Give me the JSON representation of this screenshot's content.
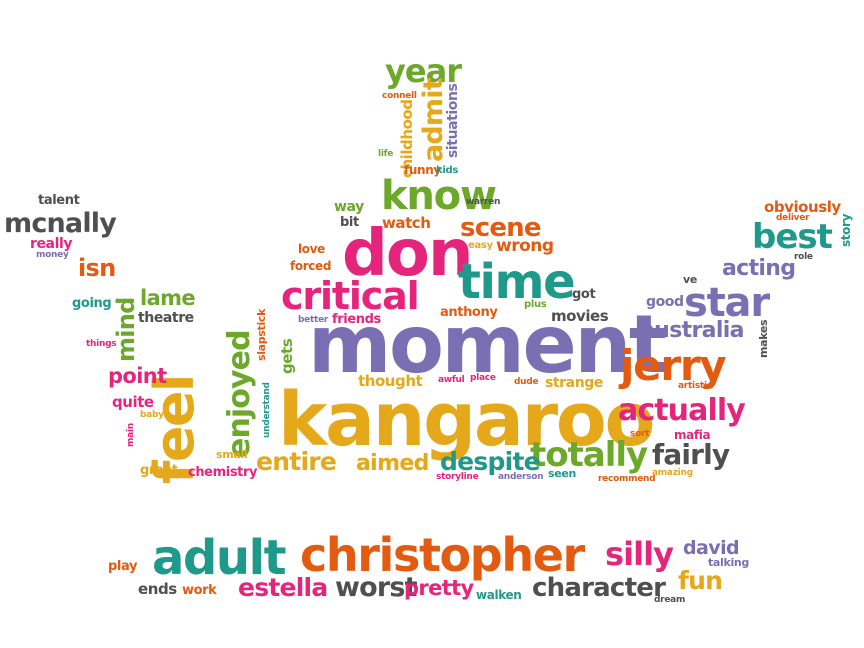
{
  "palette": {
    "pink": "#e5257c",
    "orange": "#e35b10",
    "gold": "#e5a81a",
    "green": "#6ca82a",
    "teal": "#1f9a8a",
    "purple": "#7a6fb3",
    "gray": "#4f4f4f"
  },
  "words": [
    {
      "text": "kangaroo",
      "color": "#e5a81a"
    },
    {
      "text": "moment",
      "color": "#7a6fb3"
    },
    {
      "text": "christopher",
      "color": "#e35b10"
    },
    {
      "text": "adult",
      "color": "#1f9a8a"
    },
    {
      "text": "don",
      "color": "#e5257c"
    },
    {
      "text": "feel",
      "color": "#e5a81a"
    },
    {
      "text": "time",
      "color": "#1f9a8a"
    },
    {
      "text": "critical",
      "color": "#e5257c"
    },
    {
      "text": "know",
      "color": "#6ca82a"
    },
    {
      "text": "jerry",
      "color": "#e35b10"
    },
    {
      "text": "star",
      "color": "#7a6fb3"
    },
    {
      "text": "year",
      "color": "#6ca82a"
    },
    {
      "text": "best",
      "color": "#1f9a8a"
    },
    {
      "text": "totally",
      "color": "#6ca82a"
    },
    {
      "text": "actually",
      "color": "#e5257c"
    },
    {
      "text": "enjoyed",
      "color": "#6ca82a"
    },
    {
      "text": "character",
      "color": "#4f4f4f"
    },
    {
      "text": "silly",
      "color": "#e5257c"
    },
    {
      "text": "mcnally",
      "color": "#4f4f4f"
    },
    {
      "text": "admit",
      "color": "#e5a81a"
    },
    {
      "text": "scene",
      "color": "#e35b10"
    },
    {
      "text": "despite",
      "color": "#1f9a8a"
    },
    {
      "text": "entire",
      "color": "#e5a81a"
    },
    {
      "text": "fairly",
      "color": "#4f4f4f"
    },
    {
      "text": "worst",
      "color": "#4f4f4f"
    },
    {
      "text": "estella",
      "color": "#e5257c"
    },
    {
      "text": "fun",
      "color": "#e5a81a"
    },
    {
      "text": "australia",
      "color": "#7a6fb3"
    },
    {
      "text": "acting",
      "color": "#7a6fb3"
    },
    {
      "text": "aimed",
      "color": "#e5a81a"
    },
    {
      "text": "mind",
      "color": "#6ca82a"
    },
    {
      "text": "lame",
      "color": "#6ca82a"
    },
    {
      "text": "point",
      "color": "#e5257c"
    },
    {
      "text": "pretty",
      "color": "#e5257c"
    },
    {
      "text": "david",
      "color": "#7a6fb3"
    },
    {
      "text": "wrong",
      "color": "#e35b10"
    },
    {
      "text": "isn",
      "color": "#e35b10"
    },
    {
      "text": "watch",
      "color": "#e35b10"
    },
    {
      "text": "childhood",
      "color": "#e5a81a"
    },
    {
      "text": "situations",
      "color": "#7a6fb3"
    },
    {
      "text": "obviously",
      "color": "#e35b10"
    },
    {
      "text": "movies",
      "color": "#4f4f4f"
    },
    {
      "text": "strange",
      "color": "#e5a81a"
    },
    {
      "text": "thought",
      "color": "#e5a81a"
    },
    {
      "text": "anthony",
      "color": "#e35b10"
    },
    {
      "text": "friends",
      "color": "#e5257c"
    },
    {
      "text": "theatre",
      "color": "#4f4f4f"
    },
    {
      "text": "quite",
      "color": "#e5257c"
    },
    {
      "text": "great",
      "color": "#e5a81a"
    },
    {
      "text": "chemistry",
      "color": "#e5257c"
    },
    {
      "text": "ends",
      "color": "#4f4f4f"
    },
    {
      "text": "work",
      "color": "#e35b10"
    },
    {
      "text": "walken",
      "color": "#1f9a8a"
    },
    {
      "text": "really",
      "color": "#e5257c"
    },
    {
      "text": "talent",
      "color": "#4f4f4f"
    },
    {
      "text": "mafia",
      "color": "#e5257c"
    },
    {
      "text": "funny",
      "color": "#e35b10"
    },
    {
      "text": "kids",
      "color": "#1f9a8a"
    },
    {
      "text": "gets",
      "color": "#6ca82a"
    },
    {
      "text": "going",
      "color": "#1f9a8a"
    },
    {
      "text": "good",
      "color": "#7a6fb3"
    },
    {
      "text": "way",
      "color": "#6ca82a"
    },
    {
      "text": "bit",
      "color": "#4f4f4f"
    },
    {
      "text": "love",
      "color": "#e35b10"
    },
    {
      "text": "forced",
      "color": "#e35b10"
    },
    {
      "text": "easy",
      "color": "#e5a81a"
    },
    {
      "text": "got",
      "color": "#4f4f4f"
    },
    {
      "text": "plus",
      "color": "#6ca82a"
    },
    {
      "text": "ve",
      "color": "#4f4f4f"
    },
    {
      "text": "makes",
      "color": "#4f4f4f"
    },
    {
      "text": "story",
      "color": "#1f9a8a"
    },
    {
      "text": "deliver",
      "color": "#e35b10"
    },
    {
      "text": "role",
      "color": "#4f4f4f"
    },
    {
      "text": "play",
      "color": "#e35b10"
    },
    {
      "text": "talking",
      "color": "#7a6fb3"
    },
    {
      "text": "dream",
      "color": "#4f4f4f"
    },
    {
      "text": "seen",
      "color": "#1f9a8a"
    },
    {
      "text": "anderson",
      "color": "#7a6fb3"
    },
    {
      "text": "storyline",
      "color": "#e5257c"
    },
    {
      "text": "recommend",
      "color": "#e35b10"
    },
    {
      "text": "amazing",
      "color": "#e5a81a"
    },
    {
      "text": "sort",
      "color": "#e35b10"
    },
    {
      "text": "artistic",
      "color": "#e35b10"
    },
    {
      "text": "slapstick",
      "color": "#e35b10"
    },
    {
      "text": "understand",
      "color": "#1f9a8a"
    },
    {
      "text": "small",
      "color": "#e5a81a"
    },
    {
      "text": "main",
      "color": "#e5257c"
    },
    {
      "text": "baby",
      "color": "#e5a81a"
    },
    {
      "text": "things",
      "color": "#e5257c"
    },
    {
      "text": "money",
      "color": "#7a6fb3"
    },
    {
      "text": "better",
      "color": "#7a6fb3"
    },
    {
      "text": "awful",
      "color": "#e5257c"
    },
    {
      "text": "place",
      "color": "#e5257c"
    },
    {
      "text": "dude",
      "color": "#e35b10"
    },
    {
      "text": "connell",
      "color": "#e35b10"
    },
    {
      "text": "warren",
      "color": "#4f4f4f"
    },
    {
      "text": "life",
      "color": "#6ca82a"
    }
  ]
}
